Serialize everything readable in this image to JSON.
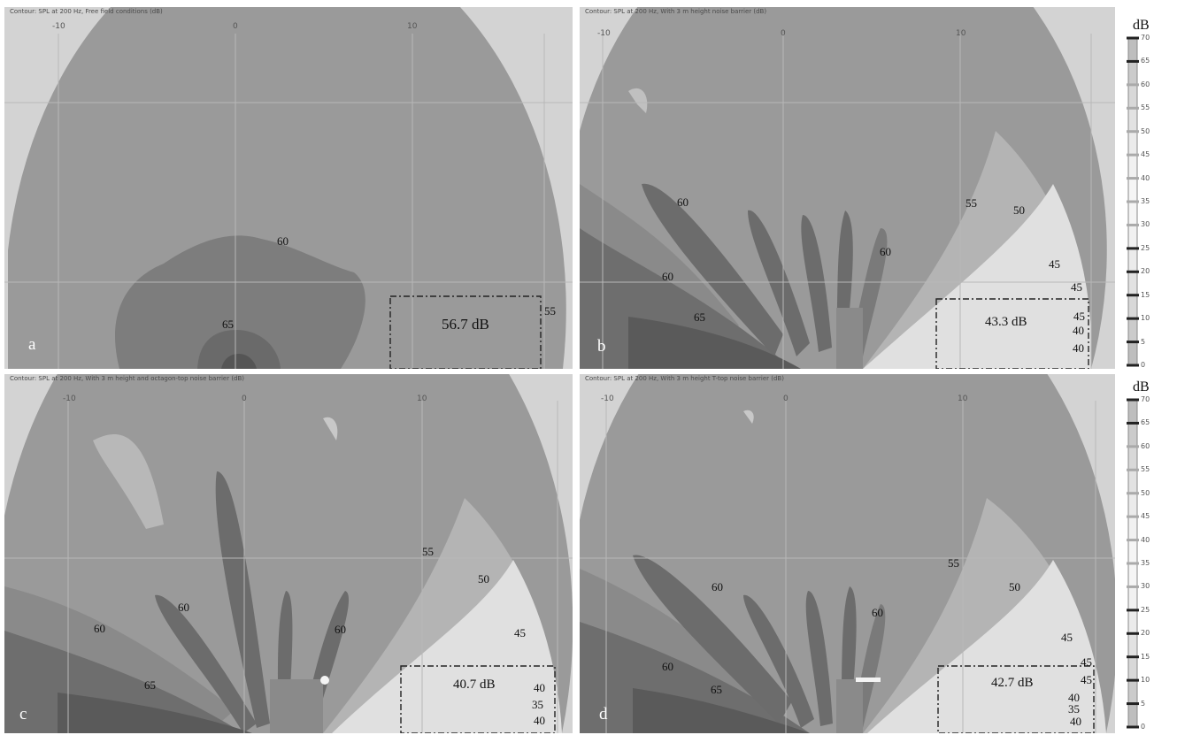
{
  "panels": {
    "a": {
      "letter": "a",
      "title": "Contour: SPL at 200 Hz, Free field conditions (dB)",
      "ticks": [
        "-10",
        "0",
        "10"
      ],
      "value": "56.7 dB",
      "labels": [
        "60",
        "65",
        "55"
      ]
    },
    "b": {
      "letter": "b",
      "title": "Contour: SPL at 200 Hz, With 3 m height noise barrier (dB)",
      "ticks": [
        "-10",
        "0",
        "10"
      ],
      "value": "43.3 dB",
      "labels": [
        "60",
        "55",
        "50",
        "60",
        "45",
        "60",
        "45",
        "65",
        "45",
        "40",
        "40"
      ]
    },
    "c": {
      "letter": "c",
      "title": "Contour: SPL at 200 Hz, With 3 m height and octagon-top noise barrier (dB)",
      "ticks": [
        "-10",
        "0",
        "10"
      ],
      "value": "40.7 dB",
      "labels": [
        "55",
        "50",
        "60",
        "60",
        "60",
        "45",
        "65",
        "40",
        "35",
        "40"
      ]
    },
    "d": {
      "letter": "d",
      "title": "Contour: SPL at 200 Hz, With 3 m height T-top noise barrier (dB)",
      "ticks": [
        "-10",
        "0",
        "10"
      ],
      "value": "42.7 dB",
      "labels": [
        "55",
        "60",
        "50",
        "60",
        "60",
        "45",
        "45",
        "65",
        "45",
        "40",
        "35",
        "40"
      ]
    }
  },
  "colorbar": {
    "unit": "dB",
    "ticks": [
      "70",
      "65",
      "60",
      "55",
      "50",
      "45",
      "40",
      "35",
      "30",
      "25",
      "20",
      "15",
      "10",
      "5",
      "0"
    ]
  }
}
